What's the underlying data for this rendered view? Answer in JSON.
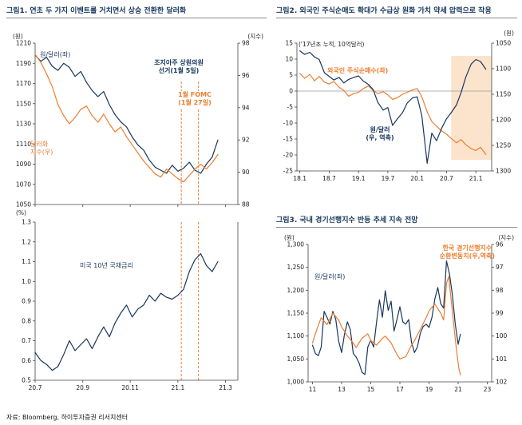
{
  "colors": {
    "navy": "#17365D",
    "orange": "#ED7D31",
    "shade": "#FBE3CC",
    "axis": "#444444"
  },
  "figures": {
    "fig1": {
      "title": "그림1.  연초 두 가지 이벤트를 거치면서 상승 전환한 달러화",
      "unit_won": "(원)",
      "unit_index": "(지수)",
      "unit_pct": "(%)",
      "annotations": {
        "won_dollar": "원/달러(좌)",
        "georgia_line1": "조지아주 상원의원",
        "georgia_line2": "선거(1월 5일)",
        "fomc_line1": "1월 FOMC",
        "fomc_line2": "(1월 27일)",
        "dollar_index_line1": "달러화",
        "dollar_index_line2": "지수(우)",
        "ust10y": "미국 10년 국채금리"
      }
    },
    "fig2": {
      "title": "그림2.  외국인 주식순매도 확대가 수급상 원화 가치 약세 압력으로 작용",
      "unit_left": "('17년초 누적, 10억달러)",
      "unit_right": "(원)",
      "annotations": {
        "foreign_net_buy": "외국인 주식순매수(좌)",
        "won_dollar_line1": "원/달러",
        "won_dollar_line2": "(우, 역축)"
      }
    },
    "fig3": {
      "title": "그림3.  국내 경기선행지수 반등 추세 지속 전망",
      "unit_left": "(원)",
      "unit_right": "(지수)",
      "annotations": {
        "won_dollar": "원/달러(좌)",
        "leading_line1": "한국 경기선행지수",
        "leading_line2": "순환변동치(우,역축)"
      }
    }
  },
  "footer": {
    "source": "자료: Bloomberg, 하이투자증권 리서치센터"
  },
  "chart_data": [
    {
      "id": "fig1-top",
      "type": "line",
      "x": {
        "min": 2020.5,
        "max": 2021.21
      },
      "x_ticks": [
        [
          2020.5,
          ""
        ],
        [
          2020.667,
          ""
        ],
        [
          2020.833,
          ""
        ],
        [
          2021.0,
          ""
        ],
        [
          2021.167,
          ""
        ]
      ],
      "left_axis": {
        "min": 1050,
        "max": 1210,
        "unit": "(원)",
        "ticks": [
          [
            1210,
            "1210"
          ],
          [
            1190,
            "1190"
          ],
          [
            1170,
            "1170"
          ],
          [
            1150,
            "1150"
          ],
          [
            1130,
            "1130"
          ],
          [
            1110,
            "1110"
          ],
          [
            1090,
            "1090"
          ],
          [
            1070,
            "1070"
          ],
          [
            1050,
            "1050"
          ]
        ]
      },
      "right_axis": {
        "min": 88,
        "max": 98,
        "unit": "(지수)",
        "ticks": [
          [
            98,
            "98"
          ],
          [
            96,
            "96"
          ],
          [
            94,
            "94"
          ],
          [
            92,
            "92"
          ],
          [
            90,
            "90"
          ],
          [
            88,
            "88"
          ]
        ]
      },
      "vlines": [
        {
          "x": 2021.012,
          "label": "조지아주 상원의원 선거(1월 5일)"
        },
        {
          "x": 2021.072,
          "label": "1월 FOMC(1월 27일)"
        }
      ],
      "series": [
        {
          "name": "원/달러(좌)",
          "axis": "left",
          "color": "#17365D",
          "x": [
            2020.5,
            2020.52,
            2020.54,
            2020.56,
            2020.58,
            2020.6,
            2020.62,
            2020.64,
            2020.66,
            2020.68,
            2020.7,
            2020.72,
            2020.74,
            2020.76,
            2020.78,
            2020.8,
            2020.82,
            2020.84,
            2020.86,
            2020.88,
            2020.9,
            2020.92,
            2020.94,
            2020.96,
            2020.98,
            2021.0,
            2021.02,
            2021.04,
            2021.06,
            2021.08,
            2021.1,
            2021.12,
            2021.14
          ],
          "y": [
            1198,
            1192,
            1196,
            1187,
            1183,
            1190,
            1186,
            1177,
            1182,
            1171,
            1163,
            1157,
            1162,
            1149,
            1139,
            1132,
            1127,
            1117,
            1109,
            1104,
            1094,
            1087,
            1084,
            1081,
            1089,
            1083,
            1086,
            1092,
            1084,
            1081,
            1090,
            1097,
            1114
          ]
        },
        {
          "name": "달러화 지수(우)",
          "axis": "right",
          "color": "#ED7D31",
          "x": [
            2020.5,
            2020.52,
            2020.54,
            2020.56,
            2020.58,
            2020.6,
            2020.62,
            2020.64,
            2020.66,
            2020.68,
            2020.7,
            2020.72,
            2020.74,
            2020.76,
            2020.78,
            2020.8,
            2020.82,
            2020.84,
            2020.86,
            2020.88,
            2020.9,
            2020.92,
            2020.94,
            2020.96,
            2020.98,
            2021.0,
            2021.02,
            2021.04,
            2021.06,
            2021.08,
            2021.1,
            2021.12,
            2021.14
          ],
          "y": [
            97.3,
            96.8,
            96.1,
            95.3,
            94.2,
            93.5,
            93.0,
            93.4,
            93.9,
            94.1,
            93.5,
            93.1,
            93.6,
            93.0,
            92.5,
            92.8,
            92.2,
            91.7,
            91.2,
            90.7,
            90.3,
            89.9,
            89.7,
            90.2,
            89.9,
            89.6,
            89.4,
            89.8,
            90.2,
            90.5,
            90.2,
            90.6,
            91.1
          ]
        }
      ]
    },
    {
      "id": "fig1-bottom",
      "type": "line",
      "x": {
        "min": 2020.5,
        "max": 2021.21
      },
      "x_ticks": [
        [
          2020.5,
          "20.7"
        ],
        [
          2020.667,
          "20.9"
        ],
        [
          2020.833,
          "20.11"
        ],
        [
          2021.0,
          "21.1"
        ],
        [
          2021.167,
          "21.3"
        ]
      ],
      "left_axis": {
        "min": 0.5,
        "max": 1.3,
        "unit": "(%)",
        "ticks": [
          [
            1.3,
            "1.3"
          ],
          [
            1.2,
            "1.2"
          ],
          [
            1.1,
            "1.1"
          ],
          [
            1.0,
            "1.0"
          ],
          [
            0.9,
            "0.9"
          ],
          [
            0.8,
            "0.8"
          ],
          [
            0.7,
            "0.7"
          ],
          [
            0.6,
            "0.6"
          ],
          [
            0.5,
            "0.5"
          ]
        ]
      },
      "vlines": [
        {
          "x": 2021.012
        },
        {
          "x": 2021.072
        }
      ],
      "series": [
        {
          "name": "미국 10년 국채금리",
          "axis": "left",
          "color": "#17365D",
          "x": [
            2020.5,
            2020.52,
            2020.54,
            2020.56,
            2020.58,
            2020.6,
            2020.62,
            2020.64,
            2020.66,
            2020.68,
            2020.7,
            2020.72,
            2020.74,
            2020.76,
            2020.78,
            2020.8,
            2020.82,
            2020.84,
            2020.86,
            2020.88,
            2020.9,
            2020.92,
            2020.94,
            2020.96,
            2020.98,
            2021.0,
            2021.02,
            2021.04,
            2021.06,
            2021.08,
            2021.1,
            2021.12,
            2021.14
          ],
          "y": [
            0.64,
            0.6,
            0.58,
            0.55,
            0.57,
            0.63,
            0.7,
            0.65,
            0.68,
            0.71,
            0.66,
            0.72,
            0.77,
            0.72,
            0.79,
            0.84,
            0.88,
            0.82,
            0.86,
            0.88,
            0.93,
            0.9,
            0.94,
            0.92,
            0.91,
            0.93,
            0.96,
            1.05,
            1.11,
            1.14,
            1.08,
            1.05,
            1.1
          ]
        }
      ]
    },
    {
      "id": "fig2",
      "type": "line",
      "x": {
        "min": 2017.95,
        "max": 2021.27
      },
      "x_ticks": [
        [
          2018.0,
          "18.1"
        ],
        [
          2018.5,
          "18.7"
        ],
        [
          2019.0,
          "19.1"
        ],
        [
          2019.5,
          "19.7"
        ],
        [
          2020.0,
          "20.1"
        ],
        [
          2020.5,
          "20.7"
        ],
        [
          2021.0,
          "21.1"
        ]
      ],
      "left_axis": {
        "min": -25,
        "max": 15,
        "unit": "('17년초 누적, 10억달러)",
        "zero_line": true,
        "ticks": [
          [
            15,
            "15"
          ],
          [
            10,
            "10"
          ],
          [
            5,
            "5"
          ],
          [
            0,
            "0"
          ],
          [
            -5,
            "-5"
          ],
          [
            -10,
            "-10"
          ],
          [
            -15,
            "-15"
          ],
          [
            -20,
            "-20"
          ],
          [
            -25,
            "-25"
          ]
        ]
      },
      "right_axis": {
        "min": 1050,
        "max": 1300,
        "inverted": true,
        "unit": "(원)",
        "ticks": [
          [
            1050,
            "1050"
          ],
          [
            1100,
            "1100"
          ],
          [
            1150,
            "1150"
          ],
          [
            1200,
            "1200"
          ],
          [
            1250,
            "1250"
          ],
          [
            1300,
            "1300"
          ]
        ]
      },
      "shade": {
        "x0": 2020.58,
        "x1": 2021.27,
        "y0": 11,
        "y1": -21.5,
        "color": "#FBE3CC"
      },
      "series": [
        {
          "name": "외국인 주식순매수(좌)",
          "axis": "left",
          "color": "#ED7D31",
          "x": [
            2018.0,
            2018.08,
            2018.17,
            2018.25,
            2018.33,
            2018.42,
            2018.5,
            2018.58,
            2018.67,
            2018.75,
            2018.83,
            2018.92,
            2019.0,
            2019.08,
            2019.17,
            2019.25,
            2019.33,
            2019.42,
            2019.5,
            2019.58,
            2019.67,
            2019.75,
            2019.83,
            2019.92,
            2020.0,
            2020.08,
            2020.17,
            2020.25,
            2020.33,
            2020.42,
            2020.5,
            2020.58,
            2020.67,
            2020.75,
            2020.83,
            2020.92,
            2021.0,
            2021.08,
            2021.17
          ],
          "y": [
            5.5,
            4.0,
            5.2,
            3.2,
            4.6,
            2.8,
            2.2,
            3.0,
            1.2,
            0.2,
            -1.6,
            -0.8,
            -0.4,
            0.8,
            1.6,
            0.2,
            -0.8,
            -0.2,
            -1.2,
            -2.6,
            -2.0,
            -1.0,
            -0.4,
            0.4,
            0.8,
            -1.8,
            -6.5,
            -9.5,
            -11.0,
            -12.5,
            -13.5,
            -14.8,
            -16.2,
            -15.2,
            -16.8,
            -18.0,
            -18.6,
            -17.6,
            -19.8
          ]
        },
        {
          "name": "원/달러 (우, 역축)",
          "axis": "right",
          "color": "#17365D",
          "x": [
            2018.0,
            2018.08,
            2018.17,
            2018.25,
            2018.33,
            2018.42,
            2018.5,
            2018.58,
            2018.67,
            2018.75,
            2018.83,
            2018.92,
            2019.0,
            2019.08,
            2019.17,
            2019.25,
            2019.33,
            2019.42,
            2019.5,
            2019.58,
            2019.67,
            2019.75,
            2019.83,
            2019.92,
            2020.0,
            2020.08,
            2020.17,
            2020.25,
            2020.33,
            2020.42,
            2020.5,
            2020.58,
            2020.67,
            2020.75,
            2020.83,
            2020.92,
            2021.0,
            2021.08,
            2021.17
          ],
          "y": [
            1065,
            1072,
            1068,
            1077,
            1082,
            1108,
            1115,
            1122,
            1117,
            1128,
            1121,
            1117,
            1114,
            1124,
            1131,
            1141,
            1166,
            1181,
            1176,
            1211,
            1197,
            1186,
            1167,
            1157,
            1155,
            1192,
            1285,
            1226,
            1241,
            1216,
            1198,
            1186,
            1171,
            1146,
            1116,
            1091,
            1082,
            1086,
            1101
          ]
        }
      ]
    },
    {
      "id": "fig3",
      "type": "line",
      "x": {
        "min": 2010.7,
        "max": 2023.3
      },
      "x_ticks": [
        [
          2011,
          "11"
        ],
        [
          2013,
          "13"
        ],
        [
          2015,
          "15"
        ],
        [
          2017,
          "17"
        ],
        [
          2019,
          "19"
        ],
        [
          2021,
          "21"
        ],
        [
          2023,
          "23"
        ]
      ],
      "left_axis": {
        "min": 1000,
        "max": 1300,
        "unit": "(원)",
        "ticks": [
          [
            1300,
            "1,300"
          ],
          [
            1250,
            "1,250"
          ],
          [
            1200,
            "1,200"
          ],
          [
            1150,
            "1,150"
          ],
          [
            1100,
            "1,100"
          ],
          [
            1050,
            "1,050"
          ],
          [
            1000,
            "1,000"
          ]
        ]
      },
      "right_axis": {
        "min": 96,
        "max": 102,
        "inverted": true,
        "unit": "(지수)",
        "ticks": [
          [
            96,
            "96"
          ],
          [
            97,
            "97"
          ],
          [
            98,
            "98"
          ],
          [
            99,
            "99"
          ],
          [
            100,
            "100"
          ],
          [
            101,
            "101"
          ],
          [
            102,
            "102"
          ]
        ]
      },
      "series": [
        {
          "name": "원/달러(좌)",
          "axis": "left",
          "color": "#17365D",
          "x": [
            2011.0,
            2011.2,
            2011.4,
            2011.6,
            2011.8,
            2012.0,
            2012.2,
            2012.4,
            2012.6,
            2012.8,
            2013.0,
            2013.2,
            2013.4,
            2013.6,
            2013.8,
            2014.0,
            2014.2,
            2014.4,
            2014.6,
            2014.8,
            2015.0,
            2015.2,
            2015.4,
            2015.6,
            2015.8,
            2016.0,
            2016.2,
            2016.4,
            2016.6,
            2016.8,
            2017.0,
            2017.2,
            2017.4,
            2017.6,
            2017.8,
            2018.0,
            2018.2,
            2018.4,
            2018.6,
            2018.8,
            2019.0,
            2019.2,
            2019.4,
            2019.6,
            2019.8,
            2020.0,
            2020.2,
            2020.4,
            2020.6,
            2020.8,
            2021.0,
            2021.15
          ],
          "y": [
            1080,
            1062,
            1057,
            1076,
            1154,
            1141,
            1126,
            1154,
            1136,
            1089,
            1064,
            1104,
            1131,
            1114,
            1062,
            1054,
            1041,
            1021,
            1016,
            1076,
            1091,
            1076,
            1131,
            1179,
            1141,
            1199,
            1156,
            1176,
            1111,
            1136,
            1164,
            1131,
            1126,
            1136,
            1086,
            1064,
            1076,
            1106,
            1121,
            1126,
            1119,
            1141,
            1181,
            1206,
            1171,
            1161,
            1264,
            1236,
            1191,
            1126,
            1082,
            1104
          ]
        },
        {
          "name": "한국 경기선행지수 순환변동치(우,역축)",
          "axis": "right",
          "color": "#ED7D31",
          "x": [
            2011.0,
            2011.3,
            2011.6,
            2012.0,
            2012.4,
            2012.8,
            2013.0,
            2013.4,
            2013.8,
            2014.0,
            2014.4,
            2014.8,
            2015.0,
            2015.4,
            2015.8,
            2016.0,
            2016.4,
            2016.8,
            2017.0,
            2017.4,
            2017.8,
            2018.0,
            2018.4,
            2018.8,
            2019.0,
            2019.4,
            2019.8,
            2020.0,
            2020.2,
            2020.35,
            2020.5,
            2020.7,
            2020.9,
            2021.05,
            2021.15
          ],
          "y": [
            100.3,
            99.7,
            99.2,
            99.5,
            99.0,
            99.3,
            99.6,
            100.0,
            100.3,
            100.5,
            100.1,
            99.9,
            100.2,
            100.4,
            100.1,
            100.0,
            100.3,
            100.8,
            101.0,
            100.9,
            100.4,
            100.2,
            99.7,
            99.2,
            98.9,
            98.6,
            99.0,
            99.3,
            97.7,
            97.4,
            98.3,
            99.5,
            100.7,
            101.4,
            101.7
          ]
        }
      ]
    }
  ]
}
